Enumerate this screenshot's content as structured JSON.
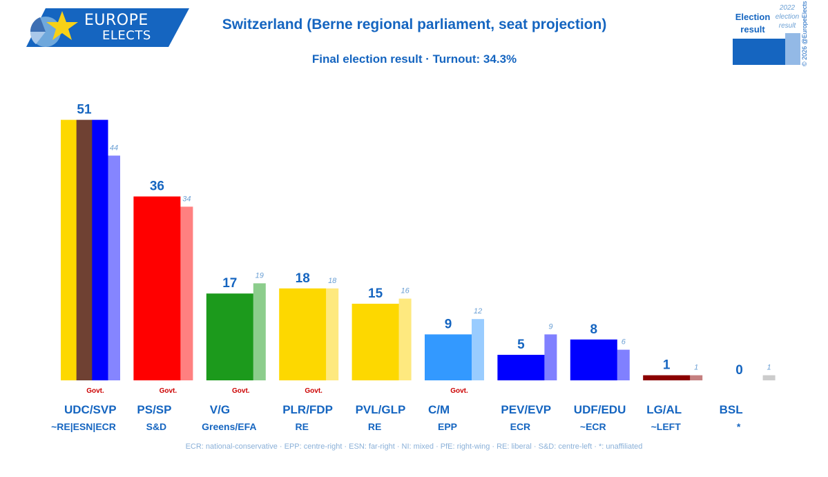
{
  "brand": {
    "line1": "EUROPE",
    "line2": "ELECTS",
    "colors": {
      "banner": "#1565c0",
      "star": "#f7d117"
    }
  },
  "header": {
    "title": "Switzerland (Berne regional parliament, seat projection)",
    "subtitle": "Final election result · Turnout: 34.3%"
  },
  "legend": {
    "current_label": "Election result",
    "previous_label": "2022 election result"
  },
  "copyright": "© 2026 @EuropeElects",
  "footnote": "ECR: national-conservative · EPP: centre-right · ESN: far-right · NI: mixed · PfE: right-wing · RE: liberal · S&D: centre-left · *: unaffiliated",
  "chart_data": {
    "type": "bar",
    "title": "Switzerland (Berne regional parliament, seat projection)",
    "categories": [
      "UDC/SVP",
      "PS/SP",
      "V/G",
      "PLR/FDP",
      "PVL/GLP",
      "C/M",
      "PEV/EVP",
      "UDF/EDU",
      "LG/AL",
      "BSL"
    ],
    "groups": [
      "~RE|ESN|ECR",
      "S&D",
      "Greens/EFA",
      "RE",
      "RE",
      "EPP",
      "ECR",
      "~ECR",
      "~LEFT",
      "*"
    ],
    "series": [
      {
        "name": "Election result",
        "values": [
          51,
          36,
          17,
          18,
          15,
          9,
          5,
          8,
          1,
          0
        ]
      },
      {
        "name": "2022 election result",
        "values": [
          44,
          34,
          19,
          18,
          16,
          12,
          9,
          6,
          1,
          1
        ]
      }
    ],
    "government": [
      true,
      true,
      true,
      true,
      false,
      true,
      false,
      false,
      false,
      false
    ],
    "government_label": "Govt.",
    "colors": [
      "#fdd800",
      "#ff0000",
      "#1c9a1c",
      "#fdd800",
      "#fdd800",
      "#3399ff",
      "#0000ff",
      "#0000ff",
      "#8b0000",
      "#cccccc"
    ],
    "previous_colors": [
      "#8585ff",
      "#ff8080",
      "#8ccd8c",
      "#fee97f",
      "#fee97f",
      "#99ccff",
      "#8080ff",
      "#8080ff",
      "#c57f7f",
      "#cccccc"
    ],
    "stripe_colors_first": [
      "#fdd800",
      "#6f4133",
      "#0000ff"
    ],
    "ylim": [
      0,
      51
    ],
    "grid": false,
    "legend_position": "top-right"
  }
}
